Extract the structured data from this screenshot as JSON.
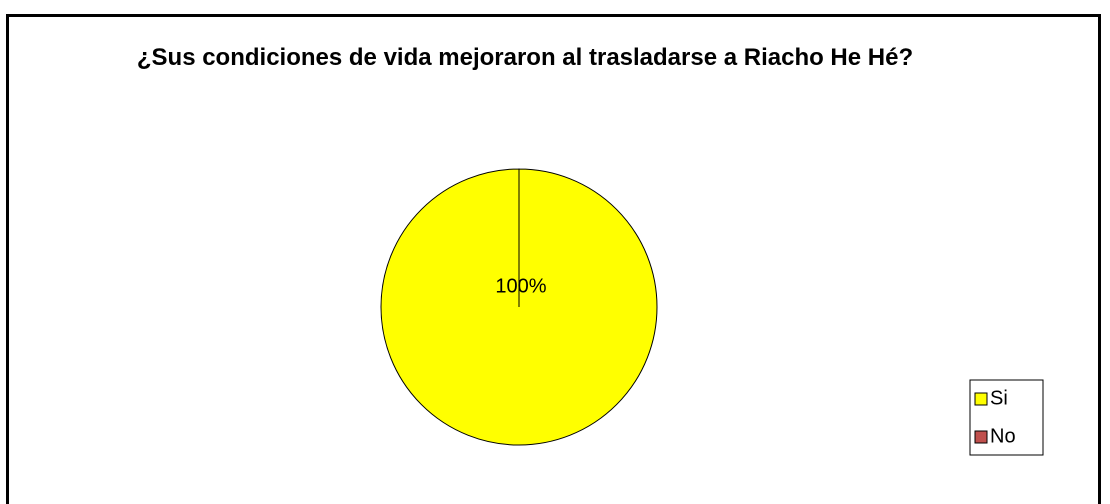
{
  "chart_data": {
    "type": "pie",
    "title": "¿Sus condiciones de vida mejoraron al trasladarse a Riacho He Hé?",
    "categories": [
      "Si",
      "No"
    ],
    "values": [
      100,
      0
    ],
    "value_labels": [
      "100%",
      null
    ],
    "colors": [
      "#ffff00",
      "#c0504d"
    ],
    "legend": "right"
  }
}
